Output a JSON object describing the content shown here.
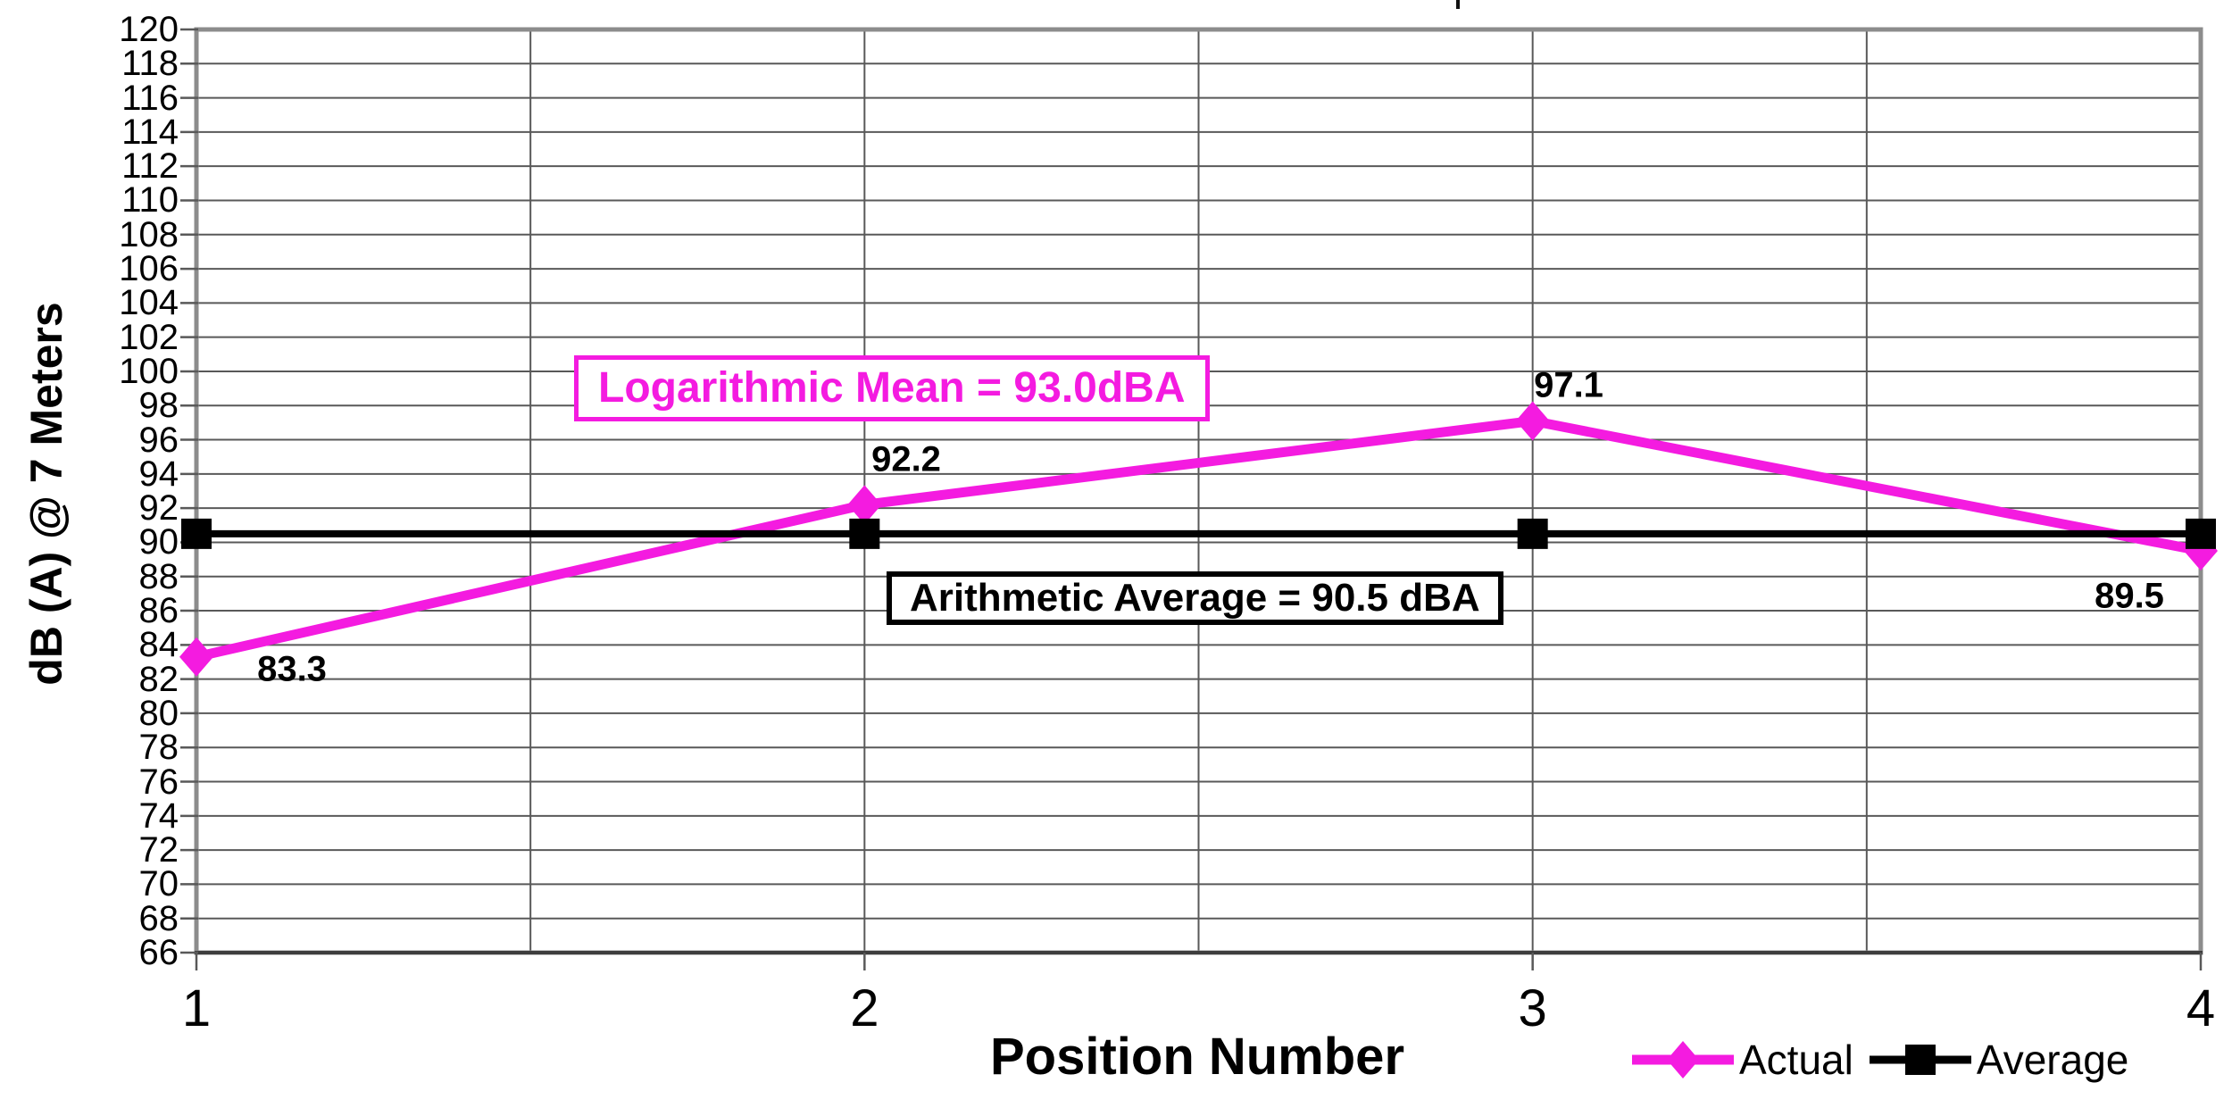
{
  "page": {
    "background": "#FFFFFF",
    "accent_magenta": "#F41BE0",
    "grid_color": "#595959",
    "plot_border_color": "#8C8C8C"
  },
  "chart_data": {
    "type": "line",
    "title": "",
    "xlabel": "Position Number",
    "ylabel": "dB (A) @ 7 Meters",
    "x": [
      1,
      2,
      3,
      4
    ],
    "x_tick_labels": [
      "1",
      "2",
      "3",
      "4"
    ],
    "xlim": [
      1,
      4
    ],
    "ylim": [
      66,
      120
    ],
    "y_ticks": [
      120,
      118,
      116,
      114,
      112,
      110,
      108,
      106,
      104,
      102,
      100,
      98,
      96,
      94,
      92,
      90,
      88,
      86,
      84,
      82,
      80,
      78,
      76,
      74,
      72,
      70,
      68,
      66
    ],
    "grid": true,
    "x_grid_step": 0.5,
    "y_grid_step": 2,
    "series": [
      {
        "name": "Actual",
        "type": "line",
        "color": "#F41BE0",
        "marker": "diamond",
        "values": [
          83.3,
          92.2,
          97.1,
          89.5
        ],
        "data_labels": [
          "83.3",
          "92.2",
          "97.1",
          "89.5"
        ]
      },
      {
        "name": "Average",
        "type": "line",
        "color": "#000000",
        "marker": "square",
        "values": [
          90.5,
          90.5,
          90.5,
          90.5
        ],
        "data_labels": []
      }
    ],
    "annotations": [
      {
        "id": "log-mean",
        "text": "Logarithmic Mean = 93.0dBA",
        "color": "#F41BE0"
      },
      {
        "id": "arith-avg",
        "text": "Arithmetic Average = 90.5 dBA",
        "color": "#000000"
      }
    ],
    "legend": {
      "position": "bottom-right",
      "entries": [
        {
          "label": "Actual",
          "color": "#F41BE0",
          "marker": "diamond"
        },
        {
          "label": "Average",
          "color": "#000000",
          "marker": "square"
        }
      ]
    }
  }
}
